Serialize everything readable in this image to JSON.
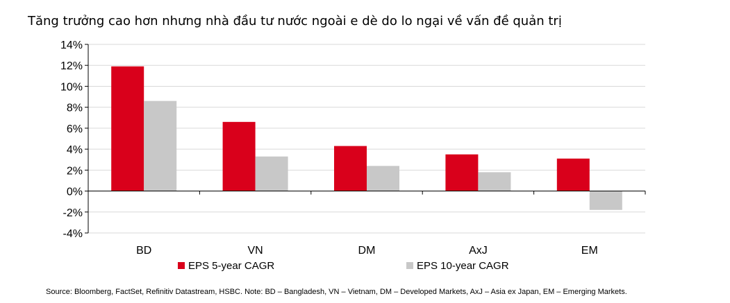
{
  "title": "Tăng trưởng cao hơn nhưng nhà đầu tư nước ngoài e dè do lo ngại về vấn đề quản trị",
  "source": "Source: Bloomberg, FactSet, Refinitiv Datastream, HSBC. Note: BD – Bangladesh, VN – Vietnam, DM – Developed Markets, AxJ – Asia ex Japan, EM – Emerging Markets.",
  "colors": {
    "series1": "#d9001b",
    "series2": "#c8c8c8",
    "grid": "#d9d9d9",
    "axis": "#000000"
  },
  "chart_data": {
    "type": "bar",
    "categories": [
      "BD",
      "VN",
      "DM",
      "AxJ",
      "EM"
    ],
    "series": [
      {
        "name": "EPS 5-year CAGR",
        "values": [
          11.9,
          6.6,
          4.3,
          3.5,
          3.1
        ]
      },
      {
        "name": "EPS 10-year CAGR",
        "values": [
          8.6,
          3.3,
          2.4,
          1.8,
          -1.8
        ]
      }
    ],
    "ylim": [
      -4,
      14
    ],
    "yticks": [
      -4,
      -2,
      0,
      2,
      4,
      6,
      8,
      10,
      12,
      14
    ],
    "ytick_labels": [
      "-4%",
      "-2%",
      "0%",
      "2%",
      "4%",
      "6%",
      "8%",
      "10%",
      "12%",
      "14%"
    ],
    "grid": true,
    "legend": "bottom"
  }
}
